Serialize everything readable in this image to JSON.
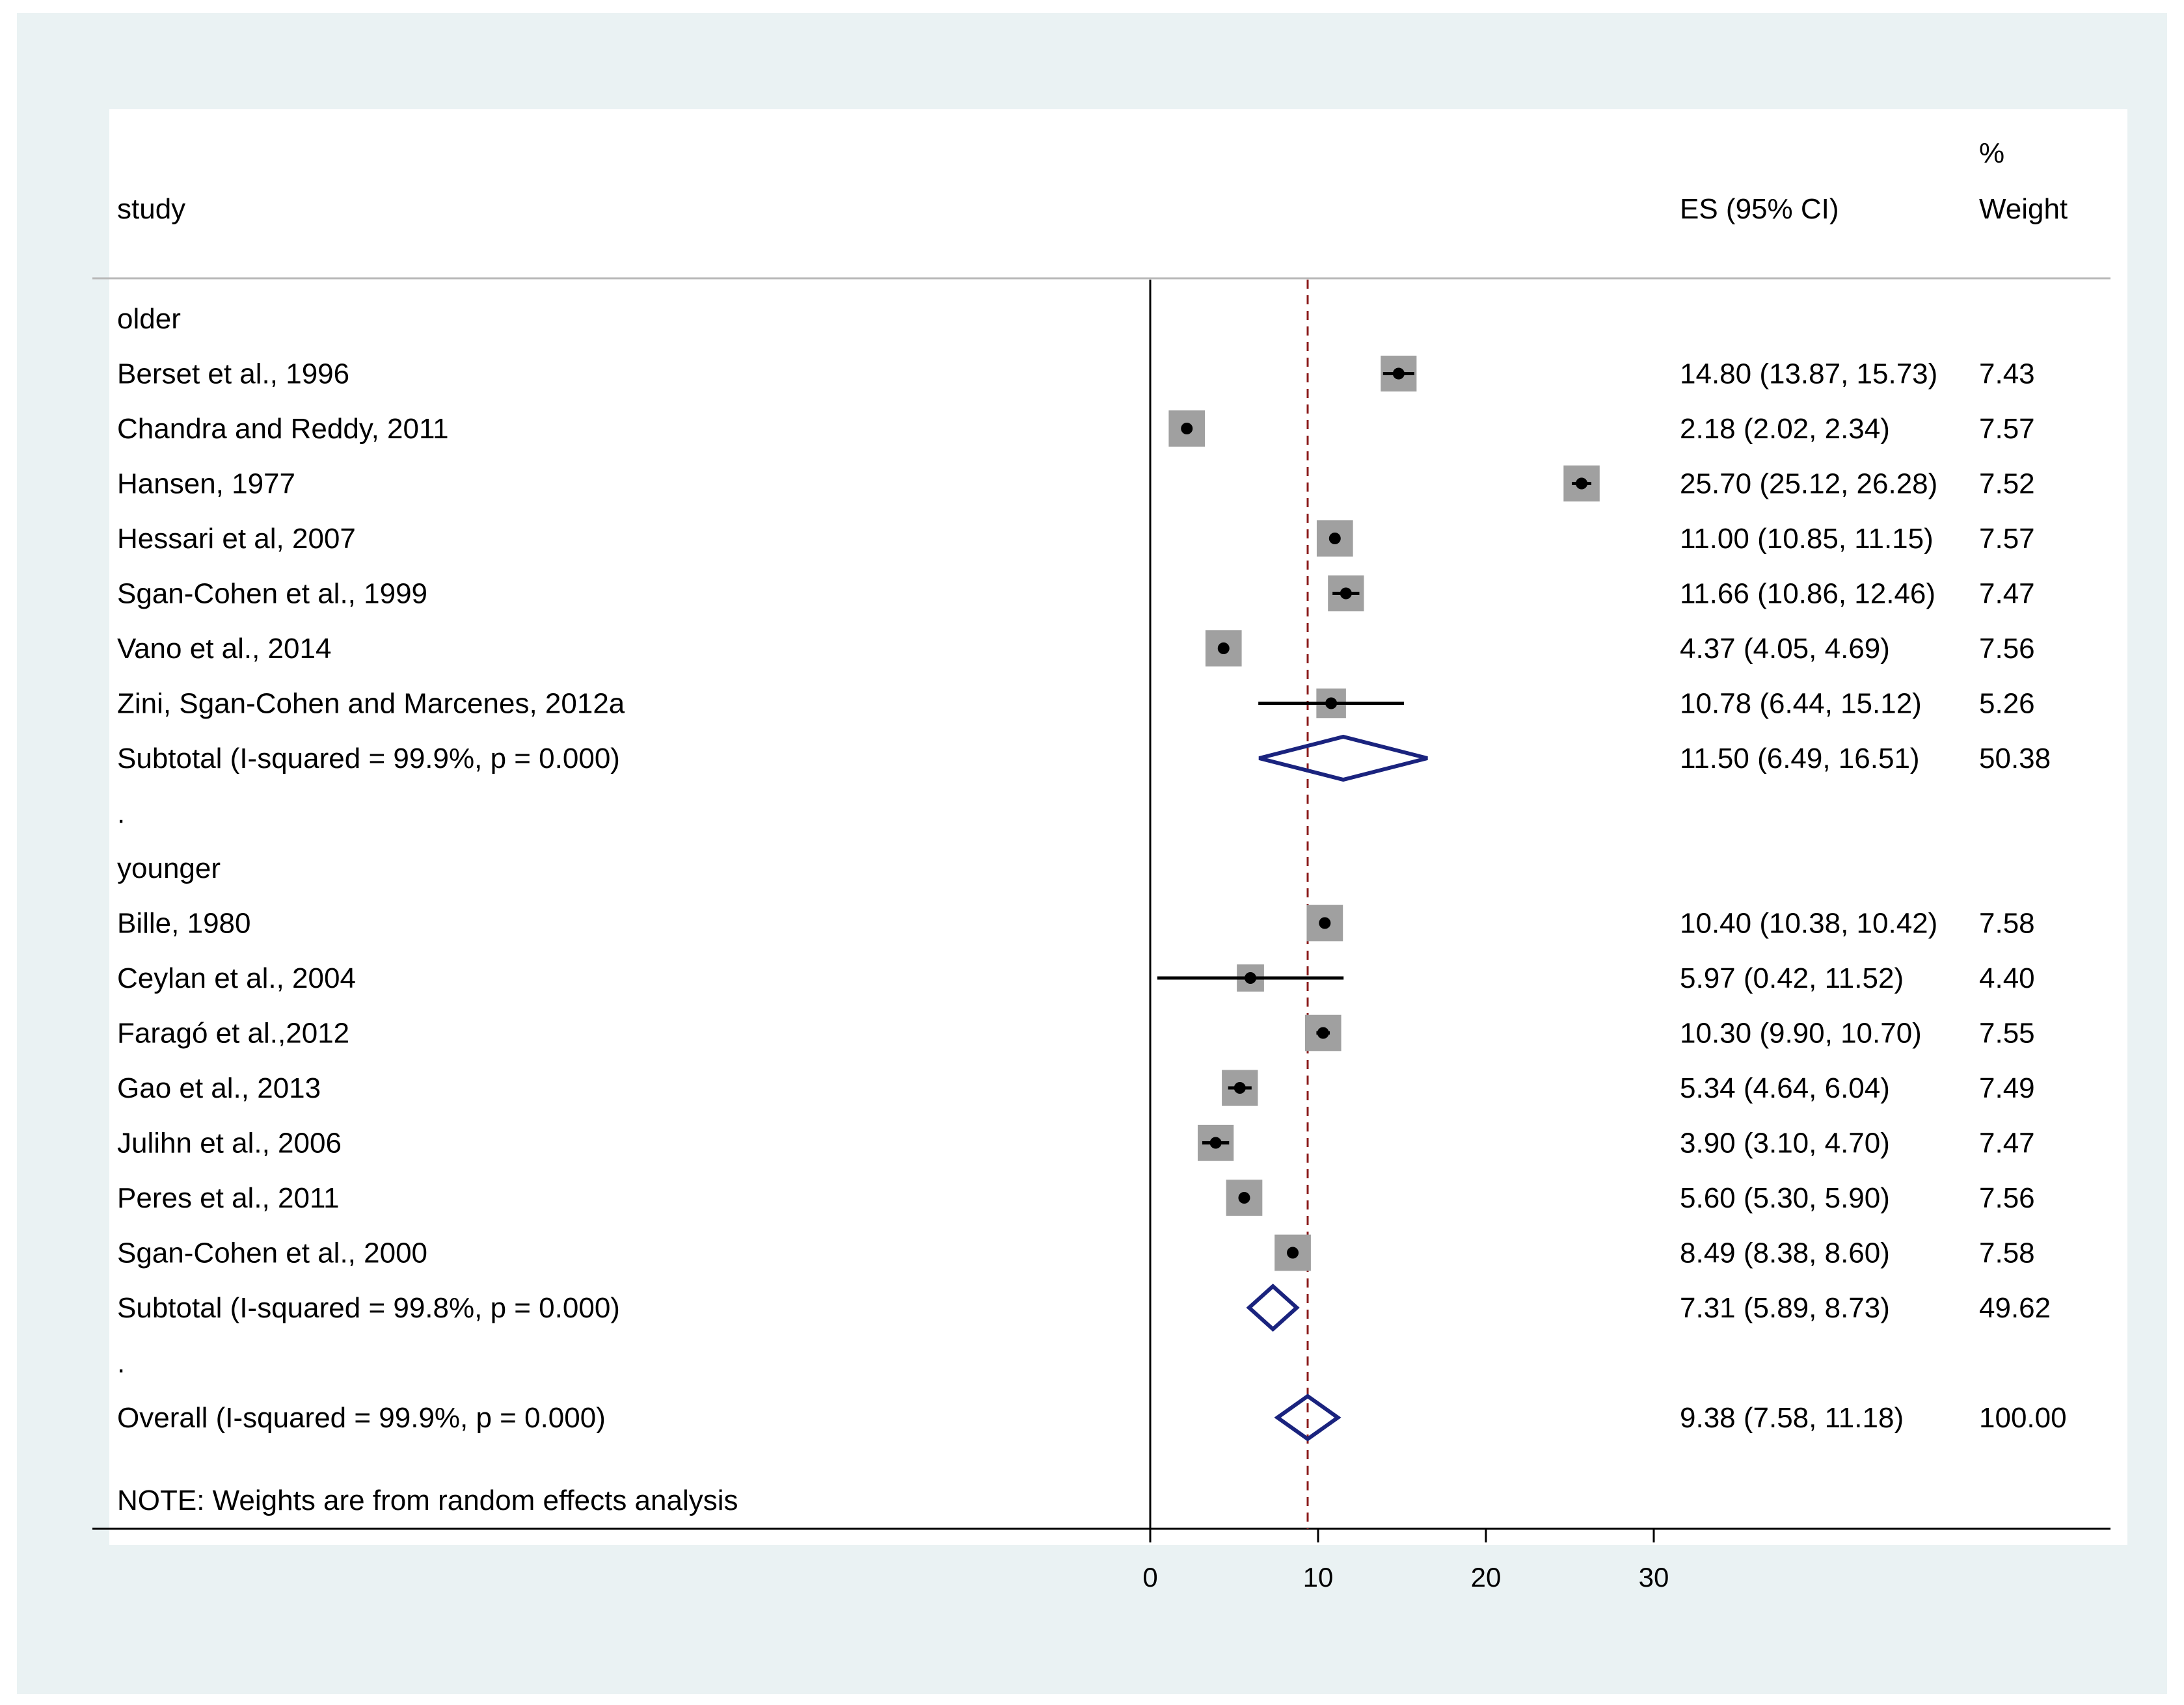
{
  "colors": {
    "background": "#eaf2f3",
    "plot_background": "#ffffff",
    "marker_box": "#a0a0a0",
    "ci_line": "#000000",
    "diamond": "#1a237e",
    "reference_line": "#8b1a1a"
  },
  "header": {
    "study": "study",
    "es": "ES (95% CI)",
    "weight_pct": "%",
    "weight": "Weight"
  },
  "note": "NOTE: Weights are from random effects analysis",
  "chart_data": {
    "type": "forest",
    "effect_label": "ES (95% CI)",
    "xlim": [
      0,
      30
    ],
    "x_ticks": [
      0,
      10,
      20,
      30
    ],
    "x_tick_labels": [
      "0",
      "10",
      "20",
      "30"
    ],
    "null_line": 0,
    "overall_line": 9.38,
    "rows": [
      {
        "kind": "group",
        "label": "older"
      },
      {
        "kind": "study",
        "label": "Berset et al., 1996",
        "es": 14.8,
        "lo": 13.87,
        "hi": 15.73,
        "es_text": "14.80 (13.87, 15.73)",
        "weight": 7.43,
        "weight_text": "7.43"
      },
      {
        "kind": "study",
        "label": "Chandra and Reddy, 2011",
        "es": 2.18,
        "lo": 2.02,
        "hi": 2.34,
        "es_text": "2.18 (2.02, 2.34)",
        "weight": 7.57,
        "weight_text": "7.57"
      },
      {
        "kind": "study",
        "label": "Hansen, 1977",
        "es": 25.7,
        "lo": 25.12,
        "hi": 26.28,
        "es_text": "25.70 (25.12, 26.28)",
        "weight": 7.52,
        "weight_text": "7.52"
      },
      {
        "kind": "study",
        "label": "Hessari et al, 2007",
        "es": 11.0,
        "lo": 10.85,
        "hi": 11.15,
        "es_text": "11.00 (10.85, 11.15)",
        "weight": 7.57,
        "weight_text": "7.57"
      },
      {
        "kind": "study",
        "label": "Sgan-Cohen et al., 1999",
        "es": 11.66,
        "lo": 10.86,
        "hi": 12.46,
        "es_text": "11.66 (10.86, 12.46)",
        "weight": 7.47,
        "weight_text": "7.47"
      },
      {
        "kind": "study",
        "label": "Vano et al., 2014",
        "es": 4.37,
        "lo": 4.05,
        "hi": 4.69,
        "es_text": "4.37 (4.05, 4.69)",
        "weight": 7.56,
        "weight_text": "7.56"
      },
      {
        "kind": "study",
        "label": "Zini, Sgan-Cohen and Marcenes, 2012a",
        "es": 10.78,
        "lo": 6.44,
        "hi": 15.12,
        "es_text": "10.78 (6.44, 15.12)",
        "weight": 5.26,
        "weight_text": "5.26"
      },
      {
        "kind": "subtotal",
        "label": "Subtotal  (I-squared = 99.9%, p = 0.000)",
        "es": 11.5,
        "lo": 6.49,
        "hi": 16.51,
        "es_text": "11.50 (6.49, 16.51)",
        "weight": 50.38,
        "weight_text": "50.38"
      },
      {
        "kind": "spacer",
        "label": "."
      },
      {
        "kind": "group",
        "label": "younger"
      },
      {
        "kind": "study",
        "label": "Bille, 1980",
        "es": 10.4,
        "lo": 10.38,
        "hi": 10.42,
        "es_text": "10.40 (10.38, 10.42)",
        "weight": 7.58,
        "weight_text": "7.58"
      },
      {
        "kind": "study",
        "label": "Ceylan et al., 2004",
        "es": 5.97,
        "lo": 0.42,
        "hi": 11.52,
        "es_text": "5.97 (0.42, 11.52)",
        "weight": 4.4,
        "weight_text": "4.40"
      },
      {
        "kind": "study",
        "label": "Faragó et al.,2012",
        "es": 10.3,
        "lo": 9.9,
        "hi": 10.7,
        "es_text": "10.30 (9.90, 10.70)",
        "weight": 7.55,
        "weight_text": "7.55"
      },
      {
        "kind": "study",
        "label": "Gao et al., 2013",
        "es": 5.34,
        "lo": 4.64,
        "hi": 6.04,
        "es_text": "5.34 (4.64, 6.04)",
        "weight": 7.49,
        "weight_text": "7.49"
      },
      {
        "kind": "study",
        "label": "Julihn et al., 2006",
        "es": 3.9,
        "lo": 3.1,
        "hi": 4.7,
        "es_text": "3.90 (3.10, 4.70)",
        "weight": 7.47,
        "weight_text": "7.47"
      },
      {
        "kind": "study",
        "label": "Peres et al., 2011",
        "es": 5.6,
        "lo": 5.3,
        "hi": 5.9,
        "es_text": "5.60 (5.30, 5.90)",
        "weight": 7.56,
        "weight_text": "7.56"
      },
      {
        "kind": "study",
        "label": "Sgan-Cohen et al., 2000",
        "es": 8.49,
        "lo": 8.38,
        "hi": 8.6,
        "es_text": "8.49 (8.38, 8.60)",
        "weight": 7.58,
        "weight_text": "7.58"
      },
      {
        "kind": "subtotal",
        "label": "Subtotal  (I-squared = 99.8%, p = 0.000)",
        "es": 7.31,
        "lo": 5.89,
        "hi": 8.73,
        "es_text": "7.31 (5.89, 8.73)",
        "weight": 49.62,
        "weight_text": "49.62"
      },
      {
        "kind": "spacer",
        "label": "."
      },
      {
        "kind": "overall",
        "label": "Overall  (I-squared = 99.9%, p = 0.000)",
        "es": 9.38,
        "lo": 7.58,
        "hi": 11.18,
        "es_text": "9.38 (7.58, 11.18)",
        "weight": 100.0,
        "weight_text": "100.00"
      }
    ]
  }
}
